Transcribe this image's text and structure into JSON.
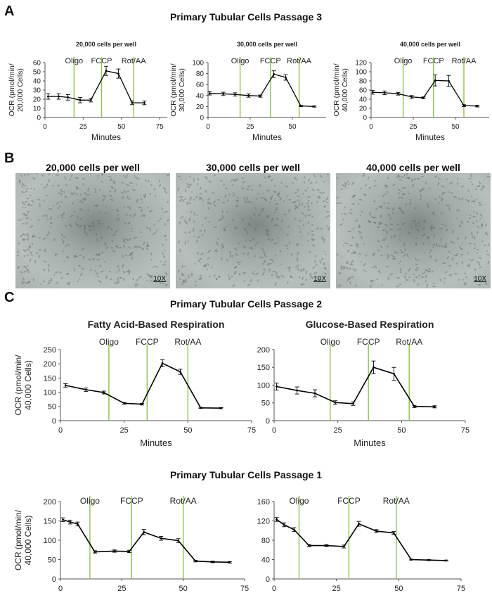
{
  "panels": {
    "a": {
      "letter": "A",
      "title": "Primary Tubular Cells Passage 3"
    },
    "b": {
      "letter": "B",
      "images": [
        {
          "title": "20,000 cells per well",
          "magnification": "10X"
        },
        {
          "title": "30,000 cells per well",
          "magnification": "10X"
        },
        {
          "title": "40,000 cells per well",
          "magnification": "10X"
        }
      ]
    },
    "c": {
      "letter": "C",
      "title": "Primary Tubular Cells Passage 2",
      "title2": "Primary Tubular Cells Passage 1"
    }
  },
  "chart_data": [
    {
      "id": "a1",
      "type": "line",
      "title": "20,000 cells per well",
      "xlabel": "Minutes",
      "ylabel": "OCR (pmol/min/ 20,000 Cells)",
      "xlim": [
        0,
        80
      ],
      "ylim": [
        0,
        60
      ],
      "xticks": [
        0,
        25,
        50,
        75
      ],
      "yticks": [
        0,
        10,
        20,
        30,
        40,
        50,
        60
      ],
      "injections": [
        {
          "label": "Oligo",
          "x": 19
        },
        {
          "label": "FCCP",
          "x": 37
        },
        {
          "label": "Rot/AA",
          "x": 58
        }
      ],
      "series": [
        {
          "x": [
            2,
            9,
            15,
            23,
            30,
            40,
            48,
            57,
            65
          ],
          "y": [
            23,
            23,
            22,
            19,
            19,
            51,
            48,
            16,
            16
          ],
          "err": [
            3,
            3,
            3,
            3,
            2,
            5,
            5,
            2,
            2
          ]
        }
      ]
    },
    {
      "id": "a2",
      "type": "line",
      "title": "30,000 cells per well",
      "xlabel": "Minutes",
      "ylabel": "OCR (pmol/min/ 30,000 Cells)",
      "xlim": [
        0,
        70
      ],
      "ylim": [
        0,
        100
      ],
      "xticks": [
        0,
        25,
        50
      ],
      "yticks": [
        0,
        20,
        40,
        60,
        80,
        100
      ],
      "injections": [
        {
          "label": "Oligo",
          "x": 19
        },
        {
          "label": "FCCP",
          "x": 37
        },
        {
          "label": "Rot/AA",
          "x": 54
        }
      ],
      "series": [
        {
          "x": [
            1,
            9,
            16,
            24,
            31,
            39,
            46,
            55,
            63
          ],
          "y": [
            44,
            43,
            42,
            40,
            39,
            79,
            73,
            21,
            20
          ],
          "err": [
            3,
            3,
            3,
            3,
            2,
            6,
            5,
            1,
            1
          ]
        }
      ]
    },
    {
      "id": "a3",
      "type": "line",
      "title": "40,000 cells per well",
      "xlabel": "Minutes",
      "ylabel": "OCR (pmol/min/ 40,000 Cells)",
      "xlim": [
        0,
        70
      ],
      "ylim": [
        0,
        120
      ],
      "xticks": [
        0,
        25,
        50
      ],
      "yticks": [
        0,
        20,
        40,
        60,
        80,
        100,
        120
      ],
      "injections": [
        {
          "label": "Oligo",
          "x": 19
        },
        {
          "label": "FCCP",
          "x": 37
        },
        {
          "label": "Rot/AA",
          "x": 55
        }
      ],
      "series": [
        {
          "x": [
            1,
            8,
            16,
            24,
            31,
            38,
            46,
            55,
            63
          ],
          "y": [
            55,
            54,
            52,
            45,
            43,
            81,
            80,
            26,
            25
          ],
          "err": [
            4,
            4,
            3,
            3,
            2,
            12,
            12,
            2,
            2
          ]
        }
      ]
    },
    {
      "id": "c1",
      "type": "line",
      "title": "Fatty Acid-Based Respiration",
      "xlabel": "Minutes",
      "ylabel": "OCR (pmol/min/ 40,000 Cells)",
      "xlim": [
        0,
        75
      ],
      "ylim": [
        0,
        250
      ],
      "xticks": [
        0,
        25,
        50,
        75
      ],
      "yticks": [
        0,
        50,
        100,
        150,
        200,
        250
      ],
      "injections": [
        {
          "label": "Oligo",
          "x": 19
        },
        {
          "label": "FCCP",
          "x": 34
        },
        {
          "label": "Rot/AA",
          "x": 50
        }
      ],
      "series": [
        {
          "x": [
            2,
            10,
            17,
            25,
            32,
            40,
            47,
            55,
            63
          ],
          "y": [
            124,
            109,
            99,
            61,
            58,
            202,
            172,
            45,
            44
          ],
          "err": [
            6,
            6,
            5,
            3,
            3,
            12,
            9,
            2,
            2
          ]
        }
      ]
    },
    {
      "id": "c2",
      "type": "line",
      "title": "Glucose-Based Respiration",
      "xlabel": "Minutes",
      "ylabel": "",
      "xlim": [
        0,
        75
      ],
      "ylim": [
        0,
        200
      ],
      "xticks": [
        0,
        25,
        50,
        75
      ],
      "yticks": [
        0,
        50,
        100,
        150,
        200
      ],
      "injections": [
        {
          "label": "Oligo",
          "x": 22
        },
        {
          "label": "FCCP",
          "x": 37
        },
        {
          "label": "Rot/AA",
          "x": 53
        }
      ],
      "series": [
        {
          "x": [
            1,
            9,
            16,
            24,
            31,
            39,
            47,
            55,
            63
          ],
          "y": [
            96,
            85,
            77,
            51,
            48,
            150,
            132,
            40,
            39
          ],
          "err": [
            10,
            10,
            10,
            5,
            5,
            18,
            18,
            3,
            3
          ]
        }
      ]
    },
    {
      "id": "c3",
      "type": "line",
      "title": "",
      "xlabel": "",
      "ylabel": "OCR (pmol/min/ 40,000 Cells)",
      "xlim": [
        0,
        75
      ],
      "ylim": [
        0,
        200
      ],
      "xticks": [
        0,
        25,
        50,
        75
      ],
      "yticks": [
        0,
        50,
        100,
        150,
        200
      ],
      "injections": [
        {
          "label": "Oligo",
          "x": 12
        },
        {
          "label": "FCCP",
          "x": 29
        },
        {
          "label": "Rot/AA",
          "x": 50
        }
      ],
      "series": [
        {
          "x": [
            1,
            4,
            7,
            14,
            22,
            28,
            34,
            41,
            48,
            55,
            62,
            69
          ],
          "y": [
            153,
            147,
            142,
            70,
            72,
            71,
            121,
            105,
            99,
            46,
            44,
            43
          ],
          "err": [
            5,
            5,
            5,
            3,
            3,
            3,
            7,
            5,
            5,
            2,
            2,
            2
          ]
        }
      ]
    },
    {
      "id": "c4",
      "type": "line",
      "title": "",
      "xlabel": "",
      "ylabel": "",
      "xlim": [
        0,
        75
      ],
      "ylim": [
        0,
        160
      ],
      "xticks": [
        0,
        25,
        50,
        75
      ],
      "yticks": [
        0,
        40,
        80,
        120,
        160
      ],
      "injections": [
        {
          "label": "Oligo",
          "x": 10
        },
        {
          "label": "FCCP",
          "x": 30
        },
        {
          "label": "Rot/AA",
          "x": 49
        }
      ],
      "series": [
        {
          "x": [
            1,
            4,
            8,
            14,
            21,
            28,
            34,
            41,
            48,
            55,
            62,
            69
          ],
          "y": [
            123,
            112,
            102,
            69,
            69,
            67,
            114,
            99,
            95,
            40,
            39,
            38
          ],
          "err": [
            4,
            4,
            4,
            2,
            2,
            3,
            5,
            3,
            3,
            1,
            1,
            1
          ]
        }
      ]
    }
  ]
}
